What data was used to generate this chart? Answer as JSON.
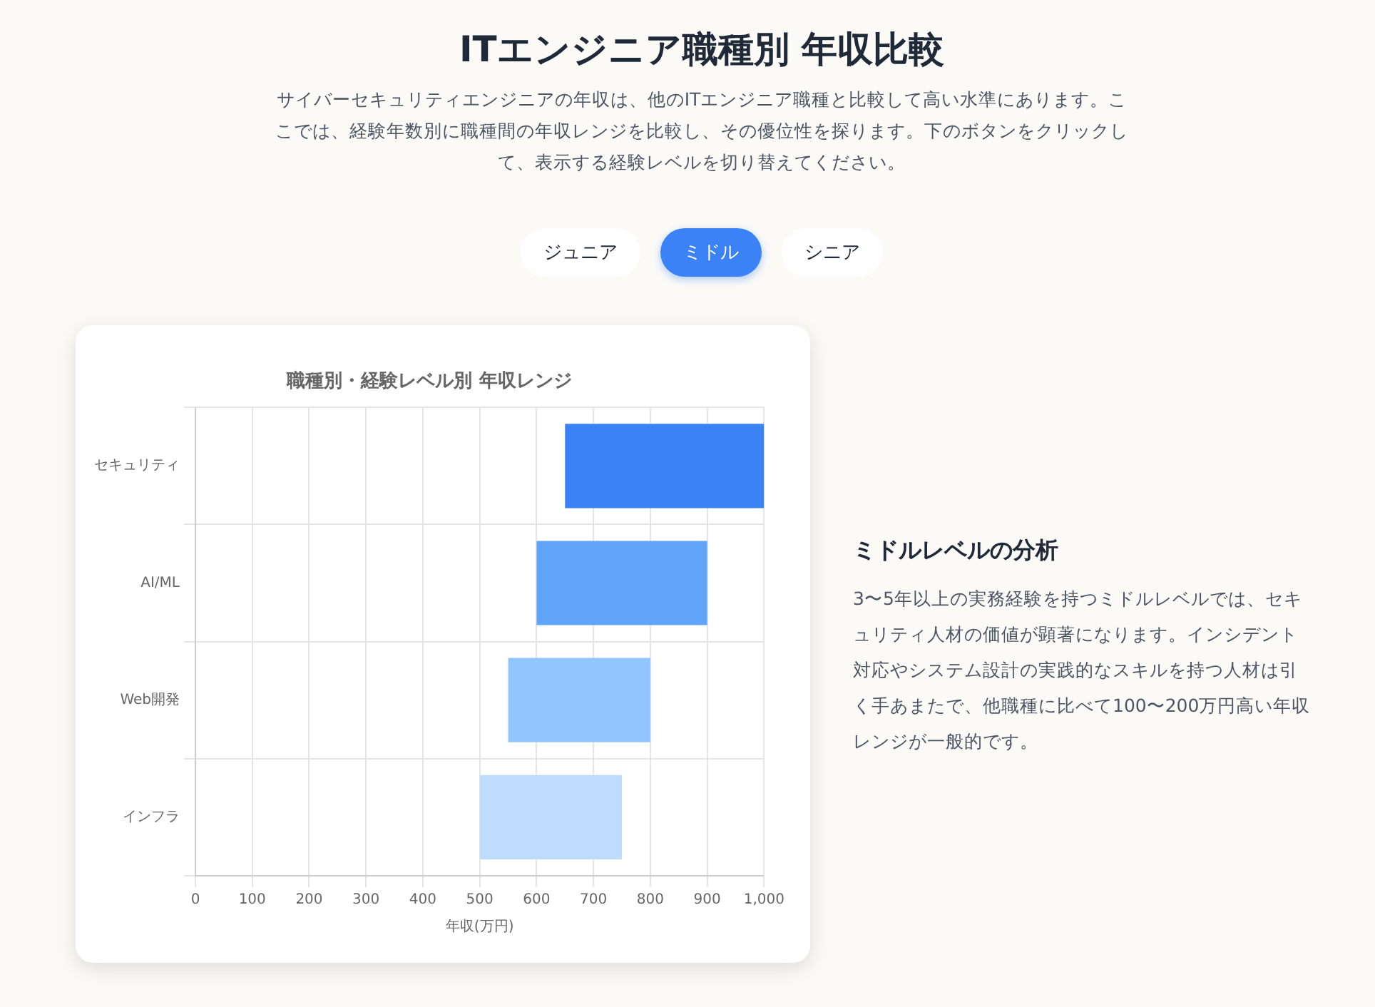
{
  "chart_data": [
    {
      "type": "other",
      "title": "ITエンジニア職種別 年収比較",
      "subtitle": "サイバーセキュリティエンジニアの年収は、他のITエンジニア職種と比較して高い水準にあります。ここでは、経験年数別に職種間の年収レンジを比較し、その優位性を探ります。下のボタンをクリックして、表示する経験レベルを切り替えてください。",
      "annotations": [
        "ジュニア",
        "ミドル",
        "シニア"
      ]
    },
    {
      "type": "bar",
      "orientation": "horizontal",
      "title": "職種別・経験レベル別 年収レンジ",
      "xlabel": "年収(万円)",
      "categories": [
        "セキュリティ",
        "AI/ML",
        "Web開発",
        "インフラ"
      ],
      "base": [
        650,
        600,
        550,
        500
      ],
      "values": [
        350,
        300,
        250,
        250
      ],
      "colors": [
        "#3b82f6",
        "#60a5fa",
        "#93c5fd",
        "#bfdbfe"
      ],
      "xlim": [
        0,
        1000
      ],
      "xticks": [
        0,
        100,
        200,
        300,
        400,
        500,
        600,
        700,
        800,
        900,
        {
          "value": 1000,
          "label": "1,000"
        }
      ],
      "grid": true,
      "legend": false
    },
    {
      "type": "other",
      "title": "ミドルレベルの分析",
      "annotations": [
        "3〜5年以上の実務経験を持つミドルレベルでは、セキュリティ人材の価値が顕著になります。インシデント対応やシステム設計の実践的なスキルを持つ人材は引く手あまたで、他職種に比べて100〜200万円高い年収レンジが一般的です。"
      ]
    }
  ]
}
